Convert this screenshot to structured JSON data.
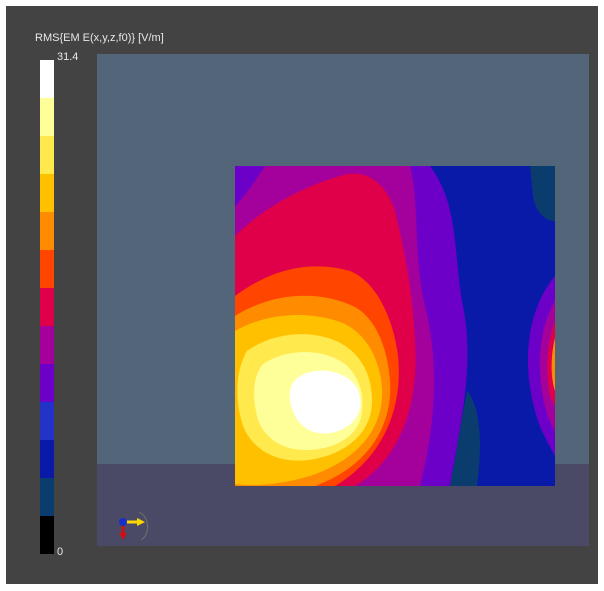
{
  "legend": {
    "title": "RMS{EM E(x,y,z,f0)} [V/m]",
    "max_label": "31.4",
    "min_label": "0",
    "colors": [
      "#ffffff",
      "#ffff99",
      "#ffe94d",
      "#ffc000",
      "#ff8c00",
      "#ff4500",
      "#e0004a",
      "#a3009c",
      "#6d00c8",
      "#2233c8",
      "#0a1aa8",
      "#0a3d6e",
      "#000000"
    ]
  },
  "viewport": {
    "background_upper": "#536579",
    "background_lower": "#4a4a66",
    "field_map": "E-field RMS contour map",
    "triad_icon": "axis-triad-icon"
  }
}
